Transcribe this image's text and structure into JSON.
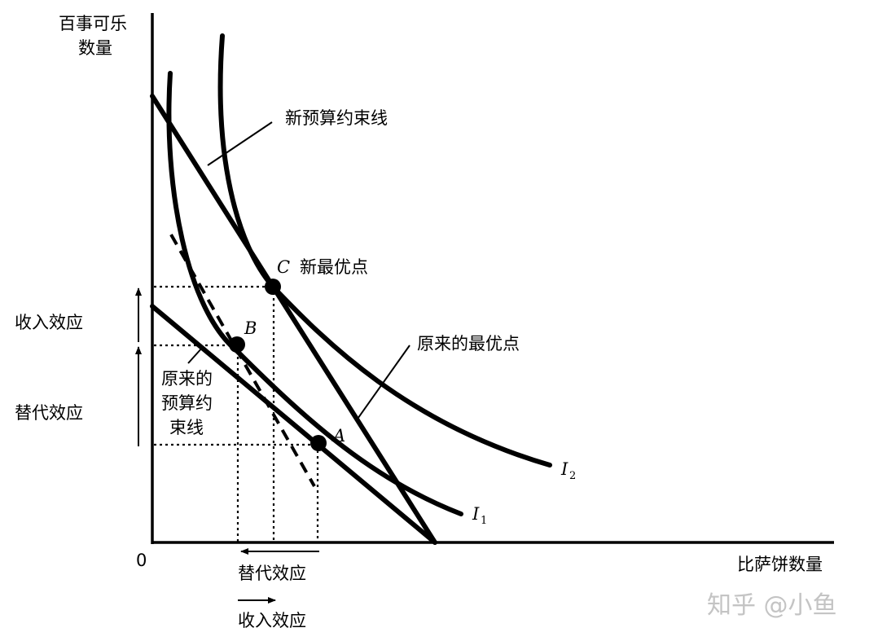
{
  "axes": {
    "y_label_line1": "百事可乐",
    "y_label_line2": "数量",
    "x_label": "比萨饼数量",
    "origin": "0"
  },
  "labels": {
    "new_budget_line": "新预算约束线",
    "point_c": "C",
    "new_optimum": "新最优点",
    "point_b": "B",
    "original_optimum": "原来的最优点",
    "point_a": "A",
    "orig_budget_line1": "原来的",
    "orig_budget_line2": "预算约",
    "orig_budget_line3": "束线",
    "curve_i1": "I",
    "curve_i1_sub": "1",
    "curve_i2": "I",
    "curve_i2_sub": "2",
    "income_effect_y": "收入效应",
    "substitution_effect_y": "替代效应",
    "substitution_effect_x": "替代效应",
    "income_effect_x": "收入效应"
  },
  "watermark": "知乎 @小鱼"
}
